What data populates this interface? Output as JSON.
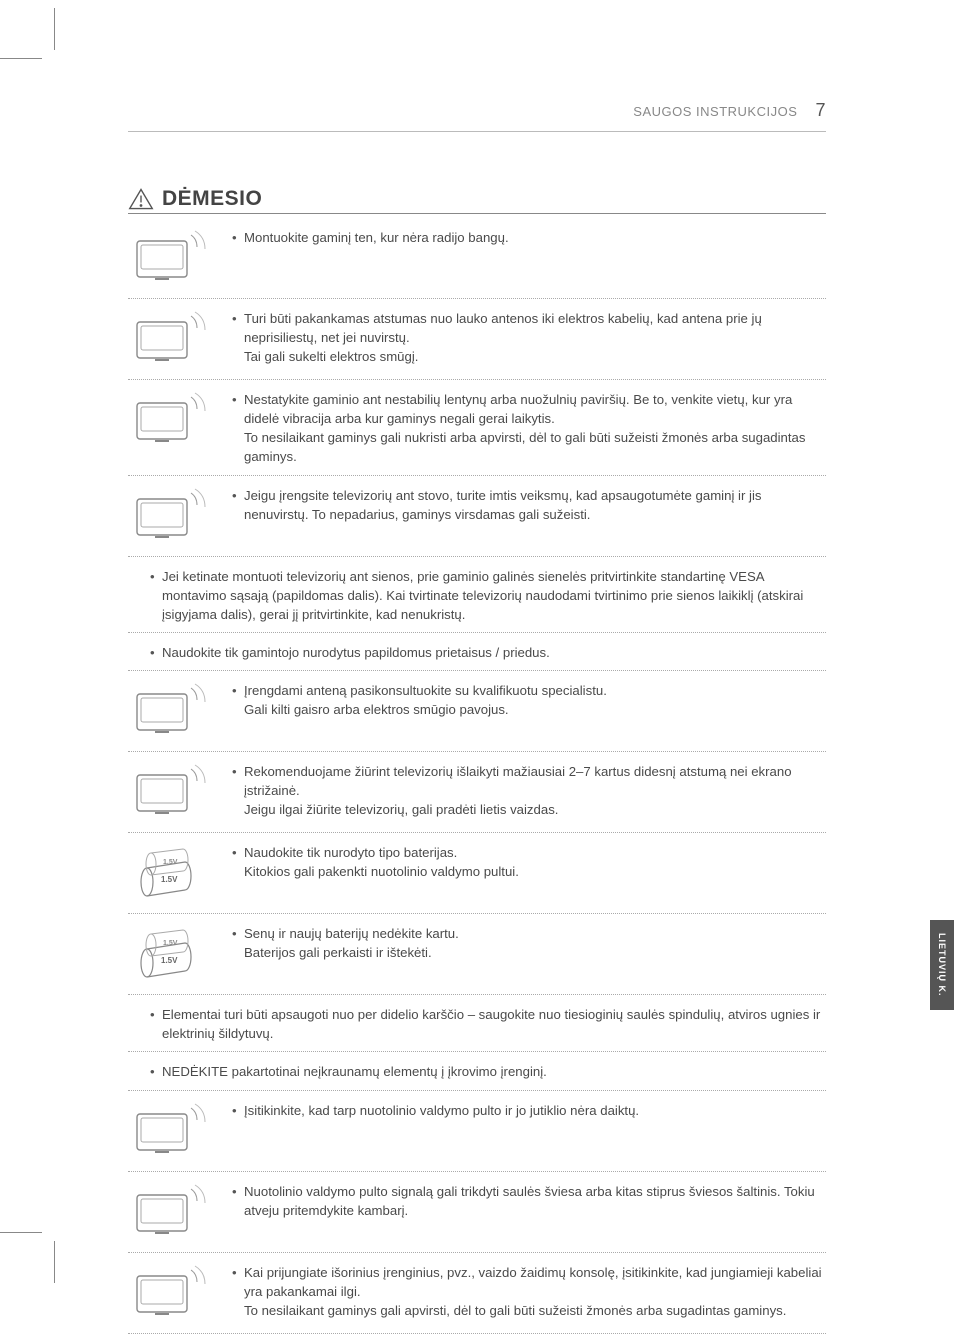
{
  "header": {
    "section": "SAUGOS INSTRUKCIJOS",
    "page_number": "7"
  },
  "title": "DĖMESIO",
  "side_tab": "LIETUVIŲ K.",
  "rows": [
    {
      "icon": "radio",
      "text": "Montuokite gaminį ten, kur nėra radijo bangų."
    },
    {
      "icon": "antenna-house",
      "text": "Turi būti pakankamas atstumas nuo lauko antenos iki elektros kabelių, kad antena prie jų neprisiliestų, net jei nuvirstų.\nTai gali sukelti elektros smūgį."
    },
    {
      "icon": "unstable",
      "text": "Nestatykite gaminio ant nestabilių lentynų arba nuožulnių paviršių. Be to, venkite vietų, kur yra didelė vibracija arba kur gaminys negali gerai laikytis.\nTo nesilaikant gaminys gali nukristi arba apvirsti, dėl to gali būti sužeisti žmonės arba sugadintas gaminys."
    },
    {
      "icon": "stand",
      "text": "Jeigu įrengsite televizorių ant stovo, turite imtis veiksmų, kad apsaugotumėte gaminį ir jis nenuvirstų. To nepadarius, gaminys virsdamas gali sužeisti."
    },
    {
      "icon": null,
      "text": "Jei ketinate montuoti televizorių ant sienos, prie gaminio galinės sienelės pritvirtinkite standartinę VESA montavimo sąsają (papildomas dalis). Kai tvirtinate televizorių naudodami tvirtinimo prie sienos laikiklį (atskirai įsigyjama dalis), gerai jį pritvirtinkite, kad nenukristų."
    },
    {
      "icon": null,
      "text": "Naudokite tik gamintojo nurodytus papildomus prietaisus / priedus."
    },
    {
      "icon": "installer",
      "text": "Įrengdami anteną pasikonsultuokite su kvalifikuotu specialistu.\nGali kilti gaisro arba elektros smūgio pavojus."
    },
    {
      "icon": "distance",
      "text": "Rekomenduojame žiūrint televizorių išlaikyti mažiausiai 2–7 kartus didesnį atstumą nei ekrano įstrižainė.\nJeigu ilgai žiūrite televizorių, gali pradėti lietis vaizdas."
    },
    {
      "icon": "battery-type",
      "text": "Naudokite tik nurodyto tipo baterijas.\nKitokios gali pakenkti nuotolinio valdymo pultui."
    },
    {
      "icon": "battery-mix",
      "text": "Senų ir naujų baterijų nedėkite kartu.\nBaterijos gali perkaisti ir ištekėti."
    },
    {
      "icon": null,
      "text": "Elementai turi būti apsaugoti nuo per didelio karščio – saugokite nuo tiesioginių saulės spindulių, atviros ugnies ir elektrinių šildytuvų."
    },
    {
      "icon": null,
      "text": "NEDĖKITE pakartotinai neįkraunamų elementų į įkrovimo įrenginį."
    },
    {
      "icon": "remote-block",
      "text": "Įsitikinkite, kad tarp nuotolinio valdymo pulto ir jo jutiklio nėra daiktų."
    },
    {
      "icon": "sunlight",
      "text": "Nuotolinio valdymo pulto signalą gali trikdyti saulės šviesa arba kitas stiprus šviesos šaltinis. Tokiu atveju pritemdykite kambarį."
    },
    {
      "icon": "console",
      "text": "Kai prijungiate išorinius įrenginius, pvz., vaizdo žaidimų konsolę, įsitikinkite, kad jungiamieji kabeliai yra pakankamai ilgi.\nTo nesilaikant gaminys gali apvirsti, dėl to gali būti sužeisti žmonės arba sugadintas gaminys."
    }
  ],
  "icons": {
    "radio": "ic-generic",
    "antenna-house": "ic-generic",
    "unstable": "ic-generic",
    "stand": "ic-generic",
    "installer": "ic-generic",
    "distance": "ic-generic",
    "battery-type": "ic-battery",
    "battery-mix": "ic-battery",
    "remote-block": "ic-generic",
    "sunlight": "ic-generic",
    "console": "ic-generic"
  },
  "colors": {
    "text": "#4a4a4a",
    "rule": "#888888",
    "dotted": "#aaaaaa",
    "tab_bg": "#555555",
    "tab_fg": "#ffffff"
  }
}
